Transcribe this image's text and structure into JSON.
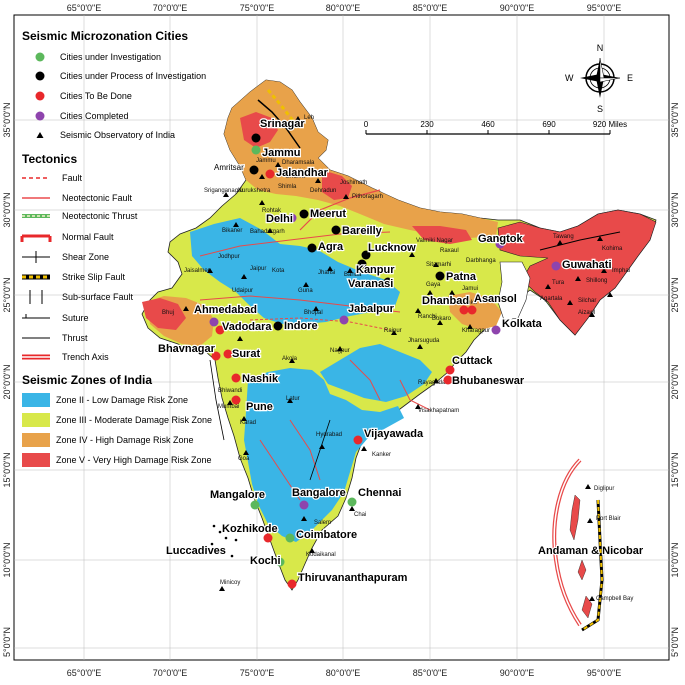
{
  "longitude_ticks": [
    "65°0'0\"E",
    "70°0'0\"E",
    "75°0'0\"E",
    "80°0'0\"E",
    "85°0'0\"E",
    "90°0'0\"E",
    "95°0'0\"E"
  ],
  "latitude_ticks": [
    "35°0'0\"N",
    "30°0'0\"N",
    "25°0'0\"N",
    "20°0'0\"N",
    "15°0'0\"N",
    "10°0'0\"N",
    "5°0'0\"N"
  ],
  "legend": {
    "cities_title": "Seismic Microzonation Cities",
    "cities": [
      {
        "label": "Cities under Investigation",
        "color": "#5cb85c"
      },
      {
        "label": "Cities under Process of Investigation",
        "color": "#000000"
      },
      {
        "label": "Cities To Be Done",
        "color": "#e8282b"
      },
      {
        "label": "Cities Completed",
        "color": "#8e44ad"
      },
      {
        "label": "Seismic Observatory of India",
        "color": "#000000"
      }
    ],
    "tectonics_title": "Tectonics",
    "tectonics": [
      "Fault",
      "Neotectonic Fault",
      "Neotectonic Thrust",
      "Normal Fault",
      "Shear Zone",
      "Strike Slip Fault",
      "Sub-surface Fault",
      "Suture",
      "Thrust",
      "Trench Axis"
    ],
    "zones_title": "Seismic Zones of India",
    "zones": [
      {
        "label": "Zone II - Low Damage Risk Zone",
        "color": "#3ab5e6"
      },
      {
        "label": "Zone III - Moderate Damage Risk Zone",
        "color": "#d8e84a"
      },
      {
        "label": "Zone IV - High Damage Risk Zone",
        "color": "#e8a24a"
      },
      {
        "label": "Zone V - Very High Damage Risk Zone",
        "color": "#e84a4a"
      }
    ]
  },
  "compass": {
    "n": "N",
    "s": "S",
    "e": "E",
    "w": "W"
  },
  "scale": {
    "labels": [
      "0",
      "230",
      "460",
      "690",
      "920 Miles"
    ]
  },
  "cities": [
    {
      "name": "Srinagar",
      "status": "under_process"
    },
    {
      "name": "Jammu",
      "status": "investigation"
    },
    {
      "name": "Amritsar",
      "status": "under_process"
    },
    {
      "name": "Jalandhar",
      "status": "to_be_done"
    },
    {
      "name": "Delhi",
      "status": "completed"
    },
    {
      "name": "Meerut",
      "status": "under_process"
    },
    {
      "name": "Agra",
      "status": "under_process"
    },
    {
      "name": "Bareilly",
      "status": "under_process"
    },
    {
      "name": "Lucknow",
      "status": "under_process"
    },
    {
      "name": "Kanpur",
      "status": "under_process"
    },
    {
      "name": "Varanasi",
      "status": "under_process"
    },
    {
      "name": "Patna",
      "status": "under_process"
    },
    {
      "name": "Gangtok",
      "status": "completed"
    },
    {
      "name": "Guwahati",
      "status": "completed"
    },
    {
      "name": "Dhanbad",
      "status": "to_be_done"
    },
    {
      "name": "Asansol",
      "status": "to_be_done"
    },
    {
      "name": "Kolkata",
      "status": "completed"
    },
    {
      "name": "Ahmedabad",
      "status": "completed"
    },
    {
      "name": "Vadodara",
      "status": "to_be_done"
    },
    {
      "name": "Indore",
      "status": "under_process"
    },
    {
      "name": "Jabalpur",
      "status": "completed"
    },
    {
      "name": "Bhavnagar",
      "status": "to_be_done"
    },
    {
      "name": "Surat",
      "status": "to_be_done"
    },
    {
      "name": "Cuttack",
      "status": "to_be_done"
    },
    {
      "name": "Bhubaneswar",
      "status": "to_be_done"
    },
    {
      "name": "Nashik",
      "status": "to_be_done"
    },
    {
      "name": "Pune",
      "status": "to_be_done"
    },
    {
      "name": "Vijayawada",
      "status": "to_be_done"
    },
    {
      "name": "Mangalore",
      "status": "investigation"
    },
    {
      "name": "Bangalore",
      "status": "completed"
    },
    {
      "name": "Chennai",
      "status": "investigation"
    },
    {
      "name": "Kozhikode",
      "status": "to_be_done"
    },
    {
      "name": "Coimbatore",
      "status": "investigation"
    },
    {
      "name": "Kochi",
      "status": "investigation"
    },
    {
      "name": "Thiruvananthapuram",
      "status": "to_be_done"
    }
  ],
  "observatories": [
    "Leh",
    "Jammu",
    "Dharamsala",
    "Bhakra",
    "Shimla",
    "Dehradun",
    "Joshimath",
    "Pithoragarh",
    "Sriganganagar",
    "Kurukshetra",
    "Rohtak",
    "Bikaner",
    "Jodhpur",
    "Jaipur",
    "Bahadurgarh",
    "Jhansi",
    "Banda",
    "Kota",
    "Guna",
    "Bhopal",
    "Jaisalmer",
    "Bhuj",
    "Udaipur",
    "Valmiki Nagar",
    "Raxaul",
    "Sitamarhi",
    "Darbhanga",
    "Gaya",
    "Bokaro",
    "Dumka",
    "Jamui",
    "Ranchi",
    "Kharagpur",
    "Nagpur",
    "Akola",
    "Jharsuguda",
    "Raipur",
    "Rayagada",
    "Visakhapatnam",
    "Latur",
    "Bhiwandi",
    "Mumbai",
    "Karad",
    "Hydrabad",
    "Kanker",
    "Goa",
    "Salem",
    "Chai",
    "Kodaikanal",
    "Minicoy",
    "Tawang",
    "Shillong",
    "Silchar",
    "Imphal",
    "Agartala",
    "Aizawl",
    "Tura",
    "Kohima",
    "Diglipur",
    "Port Blair",
    "Campbell Bay"
  ],
  "region_labels": {
    "luccadives": "Luccadives",
    "andaman": "Andaman & Nicobar"
  }
}
